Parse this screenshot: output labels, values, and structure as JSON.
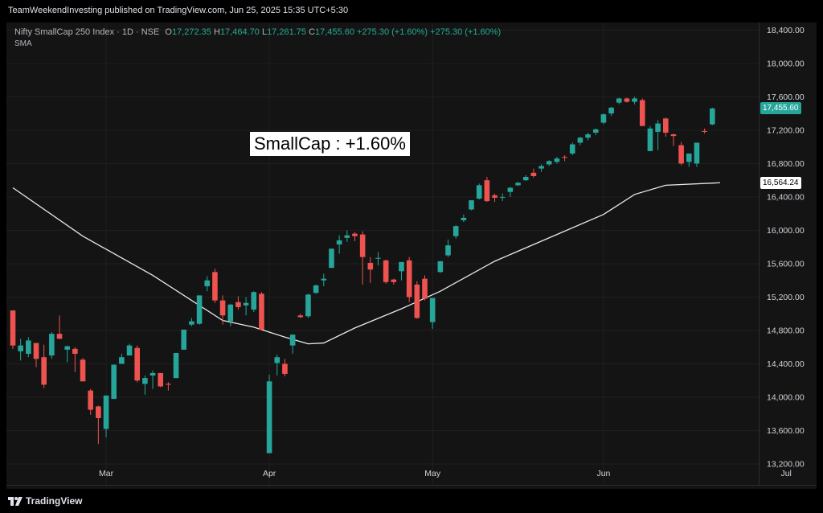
{
  "header": {
    "publisher_line": "TeamWeekendInvesting published on TradingView.com, Jun 25, 2025 15:35 UTC+5:30"
  },
  "legend": {
    "symbol": "Nifty SmallCap 250 Index · 1D · NSE",
    "o_label": "O",
    "o_value": "17,272.35",
    "h_label": "H",
    "h_value": "17,464.70",
    "l_label": "L",
    "l_value": "17,261.75",
    "c_label": "C",
    "c_value": "17,455.60",
    "change": "+275.30 (+1.60%)",
    "change2": "+275.30 (+1.60%)",
    "indicator": "SMA"
  },
  "annotation": "SmallCap : +1.60%",
  "footer": {
    "brand": "TradingView"
  },
  "colors": {
    "up": "#26a69a",
    "down": "#ef5350",
    "sma": "#e8e8e8",
    "grid": "#1f1f1f",
    "last_price_bg": "#26a69a",
    "sma_tag_bg": "#ffffff"
  },
  "chart_data": {
    "type": "candlestick",
    "title": "Nifty SmallCap 250 Index",
    "y_axis": {
      "ticks": [
        13200,
        13600,
        14000,
        14400,
        14800,
        15200,
        15600,
        16000,
        16400,
        16800,
        17200,
        17600,
        18000,
        18400
      ],
      "tick_labels": [
        "13,200.00",
        "13,600.00",
        "14,000.00",
        "14,400.00",
        "14,800.00",
        "15,200.00",
        "15,600.00",
        "16,000.00",
        "16,400.00",
        "16,800.00",
        "17,200.00",
        "17,600.00",
        "18,000.00",
        "18,400.00"
      ],
      "ylim": [
        12950,
        18490
      ]
    },
    "x_axis": {
      "labels": [
        "Mar",
        "Apr",
        "May",
        "Jun",
        "Jul"
      ],
      "label_positions_index": [
        12,
        33,
        54,
        76,
        99.5
      ]
    },
    "last_price_label": "17,455.60",
    "sma_label": "16,564.24",
    "candles": [
      [
        15040,
        15040,
        14580,
        14620
      ],
      [
        14550,
        14700,
        14440,
        14620
      ],
      [
        14520,
        14720,
        14480,
        14680
      ],
      [
        14650,
        14650,
        14360,
        14460
      ],
      [
        14480,
        14630,
        14110,
        14150
      ],
      [
        14500,
        14780,
        14460,
        14760
      ],
      [
        14760,
        14980,
        14700,
        14700
      ],
      [
        14570,
        14620,
        14420,
        14610
      ],
      [
        14580,
        14600,
        14300,
        14520
      ],
      [
        14450,
        14470,
        14190,
        14190
      ],
      [
        14080,
        14100,
        13790,
        13850
      ],
      [
        13890,
        13900,
        13440,
        13750
      ],
      [
        13620,
        14020,
        13520,
        14020
      ],
      [
        13980,
        14390,
        13980,
        14390
      ],
      [
        14400,
        14520,
        14400,
        14480
      ],
      [
        14500,
        14640,
        14520,
        14620
      ],
      [
        14590,
        14620,
        14180,
        14200
      ],
      [
        14160,
        14260,
        14030,
        14230
      ],
      [
        14260,
        14320,
        14100,
        14290
      ],
      [
        14290,
        14290,
        14120,
        14130
      ],
      [
        14160,
        14180,
        14080,
        14150
      ],
      [
        14230,
        14530,
        14230,
        14530
      ],
      [
        14570,
        14810,
        14570,
        14810
      ],
      [
        14870,
        14950,
        14850,
        14910
      ],
      [
        14880,
        15220,
        14870,
        15220
      ],
      [
        15330,
        15450,
        15270,
        15400
      ],
      [
        15500,
        15540,
        15130,
        15160
      ],
      [
        15160,
        15220,
        14870,
        14980
      ],
      [
        14910,
        15120,
        14850,
        15110
      ],
      [
        15140,
        15210,
        15050,
        15080
      ],
      [
        15100,
        15200,
        14980,
        15130
      ],
      [
        15050,
        15270,
        15020,
        15260
      ],
      [
        15240,
        15260,
        14800,
        14810
      ],
      [
        13330,
        14270,
        13330,
        14190
      ],
      [
        14410,
        14510,
        14260,
        14480
      ],
      [
        14400,
        14460,
        14250,
        14280
      ],
      [
        14620,
        14750,
        14520,
        14750
      ],
      [
        14980,
        15000,
        14950,
        14960
      ],
      [
        14970,
        15240,
        14950,
        15230
      ],
      [
        15250,
        15350,
        15240,
        15340
      ],
      [
        15400,
        15480,
        15330,
        15420
      ],
      [
        15550,
        15780,
        15550,
        15780
      ],
      [
        15830,
        15940,
        15720,
        15880
      ],
      [
        15910,
        16000,
        15860,
        15940
      ],
      [
        15960,
        15980,
        15870,
        15930
      ],
      [
        15950,
        15990,
        15350,
        15680
      ],
      [
        15610,
        15680,
        15370,
        15530
      ],
      [
        15660,
        15740,
        15580,
        15670
      ],
      [
        15640,
        15650,
        15360,
        15380
      ],
      [
        15410,
        15420,
        15350,
        15380
      ],
      [
        15510,
        15620,
        15400,
        15620
      ],
      [
        15640,
        15680,
        15140,
        15200
      ],
      [
        15350,
        15390,
        14940,
        14950
      ],
      [
        15420,
        15460,
        15160,
        15180
      ],
      [
        14900,
        15190,
        14820,
        15190
      ],
      [
        15500,
        15630,
        15490,
        15630
      ],
      [
        15700,
        15890,
        15680,
        15820
      ],
      [
        15930,
        16060,
        15900,
        16050
      ],
      [
        16120,
        16190,
        16100,
        16150
      ],
      [
        16250,
        16360,
        16240,
        16360
      ],
      [
        16380,
        16560,
        16370,
        16540
      ],
      [
        16600,
        16640,
        16340,
        16350
      ],
      [
        16420,
        16440,
        16340,
        16390
      ],
      [
        16390,
        16440,
        16350,
        16400
      ],
      [
        16460,
        16520,
        16400,
        16510
      ],
      [
        16540,
        16580,
        16530,
        16570
      ],
      [
        16600,
        16660,
        16590,
        16640
      ],
      [
        16690,
        16740,
        16630,
        16650
      ],
      [
        16740,
        16790,
        16700,
        16770
      ],
      [
        16790,
        16840,
        16770,
        16830
      ],
      [
        16820,
        16880,
        16800,
        16860
      ],
      [
        16880,
        16900,
        16830,
        16870
      ],
      [
        16920,
        17050,
        16900,
        17030
      ],
      [
        17050,
        17120,
        17020,
        17110
      ],
      [
        17110,
        17170,
        17080,
        17150
      ],
      [
        17170,
        17220,
        17140,
        17210
      ],
      [
        17290,
        17400,
        17270,
        17390
      ],
      [
        17400,
        17480,
        17370,
        17470
      ],
      [
        17530,
        17590,
        17510,
        17580
      ],
      [
        17580,
        17590,
        17530,
        17540
      ],
      [
        17540,
        17600,
        17510,
        17580
      ],
      [
        17560,
        17580,
        17250,
        17250
      ],
      [
        16950,
        17250,
        16950,
        17220
      ],
      [
        17180,
        17320,
        16960,
        17280
      ],
      [
        17340,
        17350,
        17120,
        17170
      ],
      [
        17150,
        17160,
        17010,
        17130
      ],
      [
        17020,
        17060,
        16780,
        16800
      ],
      [
        16820,
        16920,
        16760,
        16920
      ],
      [
        16800,
        17020,
        16760,
        17050
      ],
      [
        17190,
        17220,
        17160,
        17180
      ],
      [
        17270,
        17470,
        17260,
        17460
      ]
    ],
    "sma": [
      [
        0,
        16510
      ],
      [
        9,
        15930
      ],
      [
        18,
        15460
      ],
      [
        27,
        14920
      ],
      [
        31,
        14840
      ],
      [
        35,
        14720
      ],
      [
        38,
        14640
      ],
      [
        40,
        14650
      ],
      [
        44,
        14830
      ],
      [
        50,
        15060
      ],
      [
        55,
        15270
      ],
      [
        62,
        15630
      ],
      [
        70,
        15950
      ],
      [
        76,
        16190
      ],
      [
        80,
        16430
      ],
      [
        84,
        16540
      ],
      [
        91,
        16570
      ]
    ]
  }
}
